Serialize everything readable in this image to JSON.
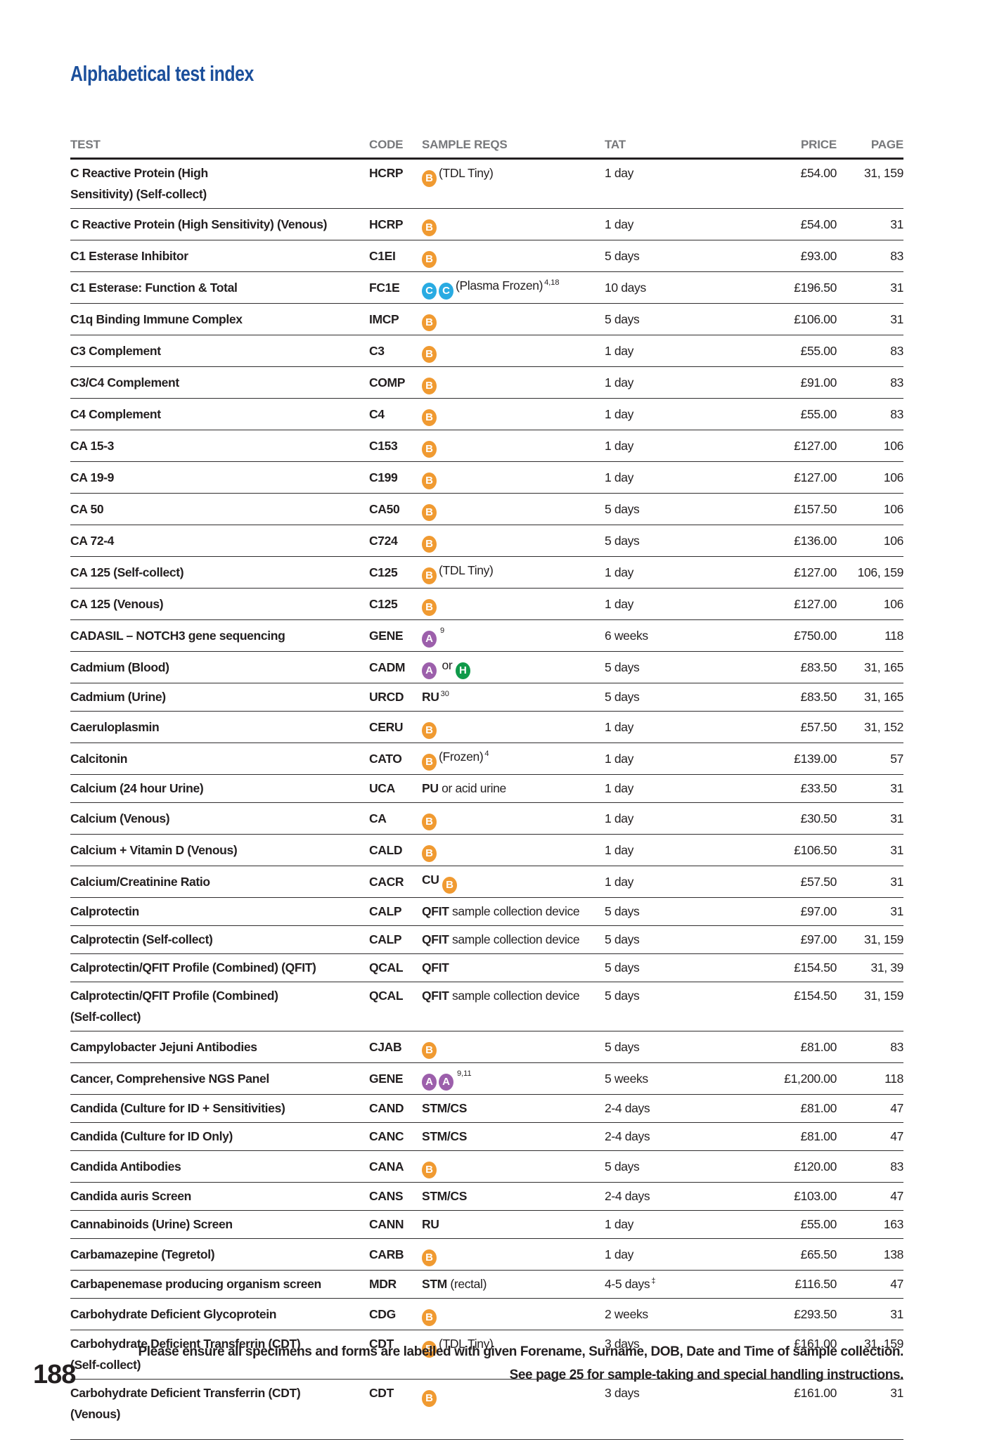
{
  "header": {
    "title": "Alphabetical test index"
  },
  "table": {
    "headers": [
      "TEST",
      "CODE",
      "SAMPLE REQS",
      "TAT",
      "PRICE",
      "PAGE"
    ],
    "icon_colors": {
      "B": "#F09A31",
      "C": "#29ABE2",
      "A": "#9C5FAB",
      "H": "#109A4A"
    },
    "rows": [
      {
        "test": [
          "C Reactive Protein (High",
          "Sensitivity) (Self-collect)"
        ],
        "code": "HCRP",
        "sample": [
          [
            "icon",
            "B"
          ],
          [
            "text",
            "(TDL Tiny)"
          ]
        ],
        "tat": "1 day",
        "tat_sup": "",
        "price": "£54.00",
        "page": "31, 159",
        "extra": false
      },
      {
        "test": "C Reactive Protein (High Sensitivity) (Venous)",
        "code": "HCRP",
        "sample": [
          [
            "icon",
            "B"
          ]
        ],
        "tat": "1 day",
        "tat_sup": "",
        "price": "£54.00",
        "page": "31",
        "extra": false
      },
      {
        "test": "C1 Esterase Inhibitor",
        "code": "C1EI",
        "sample": [
          [
            "icon",
            "B"
          ]
        ],
        "tat": "5 days",
        "tat_sup": "",
        "price": "£93.00",
        "page": "83",
        "extra": false
      },
      {
        "test": "C1 Esterase: Function & Total",
        "code": "FC1E",
        "sample": [
          [
            "icon",
            "C"
          ],
          [
            "icon",
            "C"
          ],
          [
            "text",
            "(Plasma Frozen)"
          ],
          [
            "sup",
            "4,18"
          ]
        ],
        "tat": "10 days",
        "tat_sup": "",
        "price": "£196.50",
        "page": "31",
        "extra": false
      },
      {
        "test": "C1q Binding Immune Complex",
        "code": "IMCP",
        "sample": [
          [
            "icon",
            "B"
          ]
        ],
        "tat": "5 days",
        "tat_sup": "",
        "price": "£106.00",
        "page": "31",
        "extra": false
      },
      {
        "test": "C3 Complement",
        "code": "C3",
        "sample": [
          [
            "icon",
            "B"
          ]
        ],
        "tat": "1 day",
        "tat_sup": "",
        "price": "£55.00",
        "page": "83",
        "extra": false
      },
      {
        "test": "C3/C4 Complement",
        "code": "COMP",
        "sample": [
          [
            "icon",
            "B"
          ]
        ],
        "tat": "1 day",
        "tat_sup": "",
        "price": "£91.00",
        "page": "83",
        "extra": false
      },
      {
        "test": "C4 Complement",
        "code": "C4",
        "sample": [
          [
            "icon",
            "B"
          ]
        ],
        "tat": "1 day",
        "tat_sup": "",
        "price": "£55.00",
        "page": "83",
        "extra": false
      },
      {
        "test": "CA 15-3",
        "code": "C153",
        "sample": [
          [
            "icon",
            "B"
          ]
        ],
        "tat": "1 day",
        "tat_sup": "",
        "price": "£127.00",
        "page": "106",
        "extra": false
      },
      {
        "test": "CA 19-9",
        "code": "C199",
        "sample": [
          [
            "icon",
            "B"
          ]
        ],
        "tat": "1 day",
        "tat_sup": "",
        "price": "£127.00",
        "page": "106",
        "extra": false
      },
      {
        "test": "CA 50",
        "code": "CA50",
        "sample": [
          [
            "icon",
            "B"
          ]
        ],
        "tat": "5 days",
        "tat_sup": "",
        "price": "£157.50",
        "page": "106",
        "extra": false
      },
      {
        "test": "CA 72-4",
        "code": "C724",
        "sample": [
          [
            "icon",
            "B"
          ]
        ],
        "tat": "5 days",
        "tat_sup": "",
        "price": "£136.00",
        "page": "106",
        "extra": false
      },
      {
        "test": "CA 125 (Self-collect)",
        "code": "C125",
        "sample": [
          [
            "icon",
            "B"
          ],
          [
            "text",
            "(TDL Tiny)"
          ]
        ],
        "tat": "1 day",
        "tat_sup": "",
        "price": "£127.00",
        "page": "106, 159",
        "extra": false
      },
      {
        "test": "CA 125 (Venous)",
        "code": "C125",
        "sample": [
          [
            "icon",
            "B"
          ]
        ],
        "tat": "1 day",
        "tat_sup": "",
        "price": "£127.00",
        "page": "106",
        "extra": false
      },
      {
        "test": "CADASIL – NOTCH3 gene sequencing",
        "code": "GENE",
        "sample": [
          [
            "icon",
            "A"
          ],
          [
            "sup",
            "9"
          ]
        ],
        "tat": "6 weeks",
        "tat_sup": "",
        "price": "£750.00",
        "page": "118",
        "extra": false
      },
      {
        "test": "Cadmium (Blood)",
        "code": "CADM",
        "sample": [
          [
            "icon",
            "A"
          ],
          [
            "text",
            " or "
          ],
          [
            "icon",
            "H"
          ]
        ],
        "tat": "5 days",
        "tat_sup": "",
        "price": "£83.50",
        "page": "31, 165",
        "extra": false
      },
      {
        "test": "Cadmium (Urine)",
        "code": "URCD",
        "sample": [
          [
            "bold",
            "RU"
          ],
          [
            "sup",
            "30"
          ]
        ],
        "tat": "5 days",
        "tat_sup": "",
        "price": "£83.50",
        "page": "31, 165",
        "extra": false
      },
      {
        "test": "Caeruloplasmin",
        "code": "CERU",
        "sample": [
          [
            "icon",
            "B"
          ]
        ],
        "tat": "1 day",
        "tat_sup": "",
        "price": "£57.50",
        "page": "31, 152",
        "extra": false
      },
      {
        "test": "Calcitonin",
        "code": "CATO",
        "sample": [
          [
            "icon",
            "B"
          ],
          [
            "text",
            "(Frozen)"
          ],
          [
            "sup",
            "4"
          ]
        ],
        "tat": "1 day",
        "tat_sup": "",
        "price": "£139.00",
        "page": "57",
        "extra": false
      },
      {
        "test": "Calcium (24 hour Urine)",
        "code": "UCA",
        "sample": [
          [
            "bold",
            "PU"
          ],
          [
            "text",
            " or acid urine"
          ]
        ],
        "tat": "1 day",
        "tat_sup": "",
        "price": "£33.50",
        "page": "31",
        "extra": false
      },
      {
        "test": "Calcium (Venous)",
        "code": "CA",
        "sample": [
          [
            "icon",
            "B"
          ]
        ],
        "tat": "1 day",
        "tat_sup": "",
        "price": "£30.50",
        "page": "31",
        "extra": false
      },
      {
        "test": "Calcium + Vitamin D (Venous)",
        "code": "CALD",
        "sample": [
          [
            "icon",
            "B"
          ]
        ],
        "tat": "1 day",
        "tat_sup": "",
        "price": "£106.50",
        "page": "31",
        "extra": false
      },
      {
        "test": "Calcium/Creatinine Ratio",
        "code": "CACR",
        "sample": [
          [
            "bold",
            "CU "
          ],
          [
            "icon",
            "B"
          ]
        ],
        "tat": "1 day",
        "tat_sup": "",
        "price": "£57.50",
        "page": "31",
        "extra": false
      },
      {
        "test": "Calprotectin",
        "code": "CALP",
        "sample": [
          [
            "bold",
            "QFIT"
          ],
          [
            "text",
            " sample collection device"
          ]
        ],
        "tat": "5 days",
        "tat_sup": "",
        "price": "£97.00",
        "page": "31",
        "extra": false
      },
      {
        "test": "Calprotectin (Self-collect)",
        "code": "CALP",
        "sample": [
          [
            "bold",
            "QFIT"
          ],
          [
            "text",
            " sample collection device"
          ]
        ],
        "tat": "5 days",
        "tat_sup": "",
        "price": "£97.00",
        "page": "31, 159",
        "extra": false
      },
      {
        "test": "Calprotectin/QFIT Profile (Combined) (QFIT)",
        "code": "QCAL",
        "sample": [
          [
            "bold",
            "QFIT"
          ]
        ],
        "tat": "5 days",
        "tat_sup": "",
        "price": "£154.50",
        "page": "31, 39",
        "extra": false
      },
      {
        "test": [
          "Calprotectin/QFIT Profile (Combined)",
          "(Self-collect)"
        ],
        "code": "QCAL",
        "sample": [
          [
            "bold",
            "QFIT"
          ],
          [
            "text",
            " sample collection device"
          ]
        ],
        "tat": "5 days",
        "tat_sup": "",
        "price": "£154.50",
        "page": "31, 159",
        "extra": false
      },
      {
        "test": "Campylobacter Jejuni Antibodies",
        "code": "CJAB",
        "sample": [
          [
            "icon",
            "B"
          ]
        ],
        "tat": "5 days",
        "tat_sup": "",
        "price": "£81.00",
        "page": "83",
        "extra": false
      },
      {
        "test": "Cancer, Comprehensive NGS Panel",
        "code": "GENE",
        "sample": [
          [
            "icon",
            "A"
          ],
          [
            "icon",
            "A"
          ],
          [
            "sup",
            "9,11"
          ]
        ],
        "tat": "5 weeks",
        "tat_sup": "",
        "price": "£1,200.00",
        "page": "118",
        "extra": false
      },
      {
        "test": "Candida (Culture for ID + Sensitivities)",
        "code": "CAND",
        "sample": [
          [
            "bold",
            "STM/CS"
          ]
        ],
        "tat": "2-4 days",
        "tat_sup": "",
        "price": "£81.00",
        "page": "47",
        "extra": false
      },
      {
        "test": "Candida (Culture for ID Only)",
        "code": "CANC",
        "sample": [
          [
            "bold",
            "STM/CS"
          ]
        ],
        "tat": "2-4 days",
        "tat_sup": "",
        "price": "£81.00",
        "page": "47",
        "extra": false
      },
      {
        "test": "Candida Antibodies",
        "code": "CANA",
        "sample": [
          [
            "icon",
            "B"
          ]
        ],
        "tat": "5 days",
        "tat_sup": "",
        "price": "£120.00",
        "page": "83",
        "extra": false
      },
      {
        "test": "Candida auris Screen",
        "code": "CANS",
        "sample": [
          [
            "bold",
            "STM/CS"
          ]
        ],
        "tat": "2-4 days",
        "tat_sup": "",
        "price": "£103.00",
        "page": "47",
        "extra": false
      },
      {
        "test": "Cannabinoids (Urine) Screen",
        "code": "CANN",
        "sample": [
          [
            "bold",
            "RU"
          ]
        ],
        "tat": "1 day",
        "tat_sup": "",
        "price": "£55.00",
        "page": "163",
        "extra": false
      },
      {
        "test": "Carbamazepine (Tegretol)",
        "code": "CARB",
        "sample": [
          [
            "icon",
            "B"
          ]
        ],
        "tat": "1 day",
        "tat_sup": "",
        "price": "£65.50",
        "page": "138",
        "extra": false
      },
      {
        "test": "Carbapenemase producing organism screen",
        "code": "MDR",
        "sample": [
          [
            "bold",
            "STM"
          ],
          [
            "text",
            " (rectal)"
          ]
        ],
        "tat": "4-5 days",
        "tat_sup": "‡",
        "price": "£116.50",
        "page": "47",
        "extra": false
      },
      {
        "test": "Carbohydrate Deficient Glycoprotein",
        "code": "CDG",
        "sample": [
          [
            "icon",
            "B"
          ]
        ],
        "tat": "2 weeks",
        "tat_sup": "",
        "price": "£293.50",
        "page": "31",
        "extra": false
      },
      {
        "test": [
          "Carbohydrate Deficient Transferrin (CDT)",
          "(Self-collect)"
        ],
        "code": "CDT",
        "sample": [
          [
            "icon",
            "B"
          ],
          [
            "text",
            "(TDL Tiny)"
          ]
        ],
        "tat": "3 days",
        "tat_sup": "",
        "price": "£161.00",
        "page": "31, 159",
        "extra": false
      },
      {
        "test": [
          "Carbohydrate Deficient Transferrin (CDT)",
          "(Venous)"
        ],
        "code": "CDT",
        "sample": [
          [
            "icon",
            "B"
          ]
        ],
        "tat": "3 days",
        "tat_sup": "",
        "price": "£161.00",
        "page": "31",
        "extra": true
      }
    ]
  },
  "footer": {
    "page_number": "188",
    "line1": "Please ensure all specimens and forms are labelled with given Forename, Surname, DOB, Date and Time of sample collection.",
    "line2": "See page 25 for sample-taking and special handling instructions."
  }
}
